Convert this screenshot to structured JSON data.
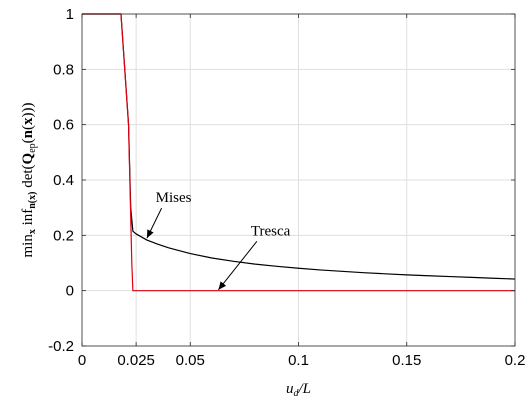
{
  "chart_data": {
    "type": "line",
    "title": "",
    "xlabel": "u_d/L",
    "ylabel": "min_x inf_n(x) det(Q_ep(n(x)))",
    "xlim": [
      0,
      0.2
    ],
    "ylim": [
      -0.2,
      1
    ],
    "grid": true,
    "xticks": [
      0,
      0.025,
      0.05,
      0.1,
      0.15,
      0.2
    ],
    "xtick_labels": [
      "0",
      "0.025",
      "0.05",
      "0.1",
      "0.15",
      "0.2"
    ],
    "yticks": [
      -0.2,
      0,
      0.2,
      0.4,
      0.6,
      0.8,
      1
    ],
    "ytick_labels": [
      "-0.2",
      "0",
      "0.2",
      "0.4",
      "0.6",
      "0.8",
      "1"
    ],
    "series": [
      {
        "name": "Mises",
        "color": "#000000",
        "x": [
          0,
          0.018,
          0.0215,
          0.0225,
          0.0235,
          0.025,
          0.03,
          0.035,
          0.04,
          0.05,
          0.06,
          0.07,
          0.08,
          0.09,
          0.1,
          0.11,
          0.12,
          0.13,
          0.14,
          0.15,
          0.16,
          0.17,
          0.18,
          0.19,
          0.2
        ],
        "y": [
          1,
          1,
          0.6,
          0.3,
          0.215,
          0.205,
          0.183,
          0.168,
          0.155,
          0.134,
          0.118,
          0.106,
          0.096,
          0.088,
          0.081,
          0.075,
          0.07,
          0.065,
          0.061,
          0.057,
          0.054,
          0.051,
          0.048,
          0.045,
          0.042
        ]
      },
      {
        "name": "Tresca",
        "color": "#e0000f",
        "x": [
          0,
          0.018,
          0.0215,
          0.023,
          0.0235,
          0.024,
          0.05,
          0.1,
          0.15,
          0.2
        ],
        "y": [
          1,
          1,
          0.6,
          0.1,
          0,
          0,
          0,
          0,
          0,
          0
        ]
      }
    ],
    "annotations": [
      {
        "text": "Mises",
        "x_data": 0.03,
        "y_data": 0.19,
        "text_at": [
          0.034,
          0.32
        ]
      },
      {
        "text": "Tresca",
        "x_data": 0.063,
        "y_data": 0.003,
        "text_at": [
          0.078,
          0.2
        ]
      }
    ]
  }
}
